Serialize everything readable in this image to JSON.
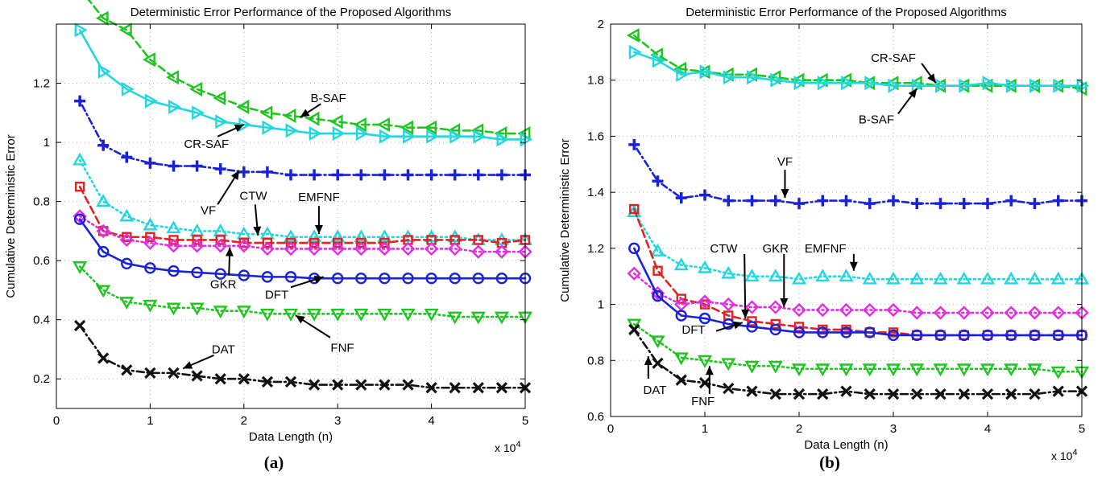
{
  "figure": {
    "panel_labels": [
      "(a)",
      "(b)"
    ]
  },
  "chart_data": [
    {
      "type": "line",
      "title": "Deterministic Error Performance of the Proposed Algorithms",
      "xlabel": "Data Length (n)",
      "ylabel": "Cumulative Deterministic Error",
      "x_multiplier_label": "x 10",
      "x_multiplier_exp": "4",
      "xlim": [
        0,
        5
      ],
      "ylim": [
        0.1,
        1.4
      ],
      "xticks": [
        "0",
        "1",
        "2",
        "3",
        "4",
        "5"
      ],
      "yticks": [
        "0.2",
        "0.4",
        "0.6",
        "0.8",
        "1",
        "1.2"
      ],
      "xtick_values": [
        0,
        1,
        2,
        3,
        4,
        5
      ],
      "ytick_values": [
        0.2,
        0.4,
        0.6,
        0.8,
        1.0,
        1.2
      ],
      "grid": true,
      "x": [
        0.25,
        0.5,
        0.75,
        1.0,
        1.25,
        1.5,
        1.75,
        2.0,
        2.25,
        2.5,
        2.75,
        3.0,
        3.25,
        3.5,
        3.75,
        4.0,
        4.25,
        4.5,
        4.75,
        5.0
      ],
      "series": [
        {
          "name": "B-SAF",
          "color": "#1fc41f",
          "marker": "tri-left",
          "dash": "9,5",
          "values": [
            1.52,
            1.42,
            1.38,
            1.28,
            1.22,
            1.18,
            1.15,
            1.12,
            1.1,
            1.09,
            1.08,
            1.07,
            1.06,
            1.06,
            1.05,
            1.05,
            1.04,
            1.04,
            1.03,
            1.03
          ]
        },
        {
          "name": "CR-SAF",
          "color": "#22d6e0",
          "marker": "tri-right",
          "dash": "",
          "values": [
            1.38,
            1.24,
            1.18,
            1.14,
            1.12,
            1.1,
            1.07,
            1.06,
            1.05,
            1.04,
            1.03,
            1.03,
            1.03,
            1.02,
            1.02,
            1.02,
            1.02,
            1.02,
            1.01,
            1.01
          ]
        },
        {
          "name": "VF",
          "color": "#1a22d6",
          "marker": "plus",
          "dash": "2,4,8,4",
          "values": [
            1.14,
            0.99,
            0.95,
            0.93,
            0.92,
            0.92,
            0.91,
            0.9,
            0.9,
            0.89,
            0.89,
            0.89,
            0.89,
            0.89,
            0.89,
            0.89,
            0.89,
            0.89,
            0.89,
            0.89
          ]
        },
        {
          "name": "EMFNF",
          "color": "#22d6e0",
          "marker": "tri-up",
          "dash": "2,4",
          "values": [
            0.94,
            0.8,
            0.75,
            0.72,
            0.71,
            0.7,
            0.7,
            0.69,
            0.69,
            0.68,
            0.68,
            0.68,
            0.68,
            0.68,
            0.68,
            0.68,
            0.68,
            0.67,
            0.67,
            0.67
          ]
        },
        {
          "name": "CTW",
          "color": "#e02222",
          "marker": "square",
          "dash": "9,5",
          "values": [
            0.85,
            0.7,
            0.68,
            0.68,
            0.67,
            0.67,
            0.67,
            0.66,
            0.66,
            0.66,
            0.66,
            0.66,
            0.66,
            0.66,
            0.67,
            0.67,
            0.67,
            0.67,
            0.66,
            0.67
          ]
        },
        {
          "name": "GKR",
          "color": "#e02ee0",
          "marker": "diamond",
          "dash": "2,4",
          "values": [
            0.75,
            0.7,
            0.67,
            0.66,
            0.65,
            0.65,
            0.65,
            0.65,
            0.64,
            0.64,
            0.64,
            0.64,
            0.64,
            0.64,
            0.64,
            0.64,
            0.64,
            0.63,
            0.63,
            0.63
          ]
        },
        {
          "name": "DFT",
          "color": "#1a22d6",
          "marker": "circle",
          "dash": "",
          "values": [
            0.74,
            0.63,
            0.59,
            0.575,
            0.565,
            0.56,
            0.555,
            0.55,
            0.545,
            0.545,
            0.54,
            0.54,
            0.54,
            0.54,
            0.54,
            0.54,
            0.54,
            0.54,
            0.54,
            0.54
          ]
        },
        {
          "name": "FNF",
          "color": "#1fc41f",
          "marker": "tri-down",
          "dash": "2,4",
          "values": [
            0.58,
            0.5,
            0.46,
            0.45,
            0.44,
            0.44,
            0.43,
            0.43,
            0.42,
            0.42,
            0.42,
            0.42,
            0.42,
            0.42,
            0.42,
            0.42,
            0.41,
            0.41,
            0.41,
            0.41
          ]
        },
        {
          "name": "DAT",
          "color": "#111111",
          "marker": "x",
          "dash": "9,4,2,4",
          "values": [
            0.38,
            0.27,
            0.23,
            0.22,
            0.22,
            0.21,
            0.2,
            0.2,
            0.19,
            0.19,
            0.18,
            0.18,
            0.18,
            0.18,
            0.18,
            0.17,
            0.17,
            0.17,
            0.17,
            0.17
          ]
        }
      ],
      "annotations": [
        {
          "text": "B-SAF",
          "tx": 2.9,
          "ty": 1.15,
          "ax": 2.6,
          "ay": 1.085,
          "sx": 2.82,
          "sy": 1.13
        },
        {
          "text": "CR-SAF",
          "tx": 1.6,
          "ty": 0.995,
          "ax": 2.0,
          "ay": 1.06,
          "sx": 1.72,
          "sy": 1.02
        },
        {
          "text": "VF",
          "tx": 1.62,
          "ty": 0.77,
          "ax": 1.95,
          "ay": 0.905,
          "sx": 1.72,
          "sy": 0.79
        },
        {
          "text": "CTW",
          "tx": 2.1,
          "ty": 0.82,
          "ax": 2.15,
          "ay": 0.685,
          "sx": 2.12,
          "sy": 0.79
        },
        {
          "text": "EMFNF",
          "tx": 2.8,
          "ty": 0.815,
          "ax": 2.8,
          "ay": 0.69,
          "sx": 2.8,
          "sy": 0.785
        },
        {
          "text": "GKR",
          "tx": 1.78,
          "ty": 0.52,
          "ax": 1.85,
          "ay": 0.645,
          "sx": 1.84,
          "sy": 0.55
        },
        {
          "text": "DFT",
          "tx": 2.35,
          "ty": 0.485,
          "ax": 2.85,
          "ay": 0.545,
          "sx": 2.5,
          "sy": 0.51
        },
        {
          "text": "FNF",
          "tx": 3.05,
          "ty": 0.305,
          "ax": 2.55,
          "ay": 0.415,
          "sx": 2.92,
          "sy": 0.34
        },
        {
          "text": "DAT",
          "tx": 1.78,
          "ty": 0.3,
          "ax": 1.35,
          "ay": 0.235,
          "sx": 1.68,
          "sy": 0.28
        }
      ]
    },
    {
      "type": "line",
      "title": "Deterministic Error Performance of the Proposed Algorithms",
      "xlabel": "Data Length (n)",
      "ylabel": "Cumulative Deterministic Error",
      "x_multiplier_label": "x 10",
      "x_multiplier_exp": "4",
      "xlim": [
        0,
        5
      ],
      "ylim": [
        0.6,
        2.0
      ],
      "xticks": [
        "0",
        "1",
        "2",
        "3",
        "4",
        "5"
      ],
      "yticks": [
        "0.6",
        "0.8",
        "1",
        "1.2",
        "1.4",
        "1.6",
        "1.8",
        "2"
      ],
      "xtick_values": [
        0,
        1,
        2,
        3,
        4,
        5
      ],
      "ytick_values": [
        0.6,
        0.8,
        1.0,
        1.2,
        1.4,
        1.6,
        1.8,
        2.0
      ],
      "grid": true,
      "x": [
        0.25,
        0.5,
        0.75,
        1.0,
        1.25,
        1.5,
        1.75,
        2.0,
        2.25,
        2.5,
        2.75,
        3.0,
        3.25,
        3.5,
        3.75,
        4.0,
        4.25,
        4.5,
        4.75,
        5.0
      ],
      "series": [
        {
          "name": "B-SAF",
          "color": "#1fc41f",
          "marker": "tri-left",
          "dash": "9,5",
          "values": [
            1.96,
            1.89,
            1.84,
            1.83,
            1.82,
            1.82,
            1.81,
            1.8,
            1.8,
            1.8,
            1.79,
            1.79,
            1.79,
            1.78,
            1.78,
            1.78,
            1.78,
            1.78,
            1.78,
            1.77
          ]
        },
        {
          "name": "CR-SAF",
          "color": "#22d6e0",
          "marker": "tri-right",
          "dash": "",
          "values": [
            1.9,
            1.87,
            1.82,
            1.83,
            1.81,
            1.81,
            1.8,
            1.79,
            1.79,
            1.79,
            1.79,
            1.78,
            1.78,
            1.78,
            1.78,
            1.79,
            1.78,
            1.78,
            1.78,
            1.78
          ]
        },
        {
          "name": "VF",
          "color": "#1a22d6",
          "marker": "plus",
          "dash": "2,4,8,4",
          "values": [
            1.57,
            1.44,
            1.38,
            1.39,
            1.37,
            1.37,
            1.37,
            1.36,
            1.37,
            1.37,
            1.36,
            1.37,
            1.36,
            1.36,
            1.36,
            1.36,
            1.37,
            1.36,
            1.37,
            1.37
          ]
        },
        {
          "name": "EMFNF",
          "color": "#22d6e0",
          "marker": "tri-up",
          "dash": "2,4",
          "values": [
            1.33,
            1.19,
            1.14,
            1.13,
            1.11,
            1.1,
            1.1,
            1.09,
            1.1,
            1.1,
            1.09,
            1.09,
            1.09,
            1.09,
            1.09,
            1.09,
            1.09,
            1.09,
            1.09,
            1.09
          ]
        },
        {
          "name": "CTW",
          "color": "#e02222",
          "marker": "square",
          "dash": "9,5",
          "values": [
            1.34,
            1.12,
            1.02,
            1.0,
            0.96,
            0.94,
            0.93,
            0.92,
            0.91,
            0.91,
            0.9,
            0.9,
            0.89,
            0.89,
            0.89,
            0.89,
            0.89,
            0.89,
            0.89,
            0.89
          ]
        },
        {
          "name": "GKR",
          "color": "#e02ee0",
          "marker": "diamond",
          "dash": "2,4",
          "values": [
            1.11,
            1.04,
            1.0,
            1.01,
            1.0,
            0.99,
            0.99,
            0.98,
            0.98,
            0.98,
            0.98,
            0.98,
            0.97,
            0.97,
            0.97,
            0.97,
            0.97,
            0.97,
            0.97,
            0.97
          ]
        },
        {
          "name": "DFT",
          "color": "#1a22d6",
          "marker": "circle",
          "dash": "",
          "values": [
            1.2,
            1.03,
            0.96,
            0.95,
            0.93,
            0.92,
            0.91,
            0.9,
            0.9,
            0.9,
            0.9,
            0.89,
            0.89,
            0.89,
            0.89,
            0.89,
            0.89,
            0.89,
            0.89,
            0.89
          ]
        },
        {
          "name": "FNF",
          "color": "#1fc41f",
          "marker": "tri-down",
          "dash": "2,4",
          "values": [
            0.93,
            0.87,
            0.81,
            0.8,
            0.79,
            0.78,
            0.78,
            0.77,
            0.77,
            0.77,
            0.77,
            0.77,
            0.77,
            0.77,
            0.77,
            0.77,
            0.77,
            0.77,
            0.76,
            0.76
          ]
        },
        {
          "name": "DAT",
          "color": "#111111",
          "marker": "x",
          "dash": "9,4,2,4",
          "values": [
            0.91,
            0.79,
            0.73,
            0.72,
            0.7,
            0.69,
            0.68,
            0.68,
            0.68,
            0.69,
            0.68,
            0.68,
            0.68,
            0.68,
            0.68,
            0.68,
            0.68,
            0.68,
            0.69,
            0.69
          ]
        }
      ],
      "annotations": [
        {
          "text": "CR-SAF",
          "tx": 3.0,
          "ty": 1.88,
          "ax": 3.45,
          "ay": 1.79,
          "sx": 3.3,
          "sy": 1.86
        },
        {
          "text": "B-SAF",
          "tx": 2.82,
          "ty": 1.66,
          "ax": 3.25,
          "ay": 1.77,
          "sx": 3.05,
          "sy": 1.68
        },
        {
          "text": "VF",
          "tx": 1.85,
          "ty": 1.51,
          "ax": 1.85,
          "ay": 1.38,
          "sx": 1.85,
          "sy": 1.48
        },
        {
          "text": "CTW",
          "tx": 1.2,
          "ty": 1.2,
          "ax": 1.43,
          "ay": 0.95,
          "sx": 1.42,
          "sy": 1.18
        },
        {
          "text": "GKR",
          "tx": 1.75,
          "ty": 1.2,
          "ax": 1.84,
          "ay": 0.99,
          "sx": 1.84,
          "sy": 1.18
        },
        {
          "text": "EMFNF",
          "tx": 2.28,
          "ty": 1.2,
          "ax": 2.58,
          "ay": 1.12,
          "sx": 2.58,
          "sy": 1.18
        },
        {
          "text": "DFT",
          "tx": 0.88,
          "ty": 0.91,
          "ax": 1.4,
          "ay": 0.935,
          "sx": 1.12,
          "sy": 0.905
        },
        {
          "text": "DAT",
          "tx": 0.47,
          "ty": 0.695,
          "ax": 0.4,
          "ay": 0.815,
          "sx": 0.4,
          "sy": 0.735
        },
        {
          "text": "FNF",
          "tx": 0.98,
          "ty": 0.655,
          "ax": 1.05,
          "ay": 0.78,
          "sx": 1.05,
          "sy": 0.68
        }
      ]
    }
  ]
}
